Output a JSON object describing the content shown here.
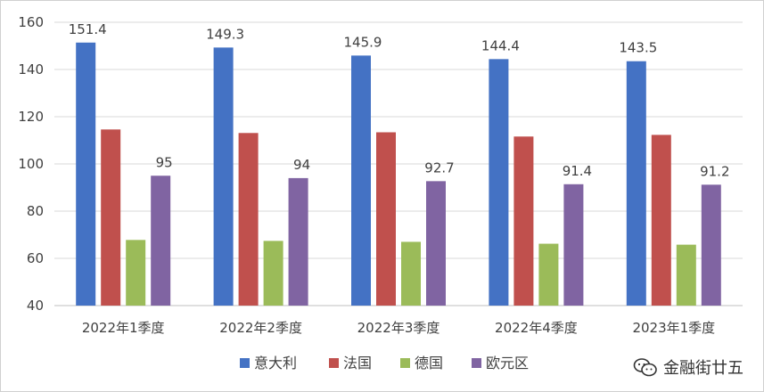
{
  "chart_data": {
    "type": "bar",
    "categories": [
      "2022年1季度",
      "2022年2季度",
      "2022年3季度",
      "2022年4季度",
      "2023年1季度"
    ],
    "series": [
      {
        "name": "意大利",
        "color": "#4472c4",
        "values": [
          151.4,
          149.3,
          145.9,
          144.4,
          143.5
        ],
        "labeled": true
      },
      {
        "name": "法国",
        "color": "#c0504d",
        "values": [
          114.6,
          113.1,
          113.4,
          111.6,
          112.3
        ],
        "labeled": false
      },
      {
        "name": "德国",
        "color": "#9bbb59",
        "values": [
          67.8,
          67.4,
          67.0,
          66.2,
          65.8
        ],
        "labeled": false
      },
      {
        "name": "欧元区",
        "color": "#8064a2",
        "values": [
          95,
          94,
          92.7,
          91.4,
          91.2
        ],
        "labeled": true
      }
    ],
    "yticks": [
      40,
      60,
      80,
      100,
      120,
      140,
      160
    ],
    "ylim": [
      40,
      160
    ],
    "grid": true,
    "legend_position": "bottom"
  },
  "watermark": {
    "text": "金融街廿五",
    "icon": "wechat-icon"
  }
}
